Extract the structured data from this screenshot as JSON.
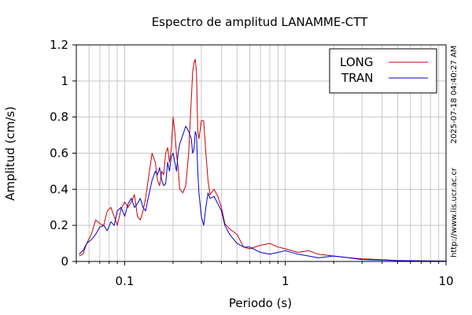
{
  "chart_data": {
    "type": "line",
    "title": "Espectro de amplitud LANAMME-CTT",
    "xlabel": "Periodo (s)",
    "ylabel": "Amplitud (cm/s)",
    "xscale": "log",
    "xlim": [
      0.05,
      10
    ],
    "ylim": [
      0,
      1.2
    ],
    "xticks": [
      {
        "v": 0.1,
        "label": "0.1"
      },
      {
        "v": 1,
        "label": "1"
      },
      {
        "v": 10,
        "label": "10"
      }
    ],
    "yticks": [
      {
        "v": 0,
        "label": "0"
      },
      {
        "v": 0.2,
        "label": "0.2"
      },
      {
        "v": 0.4,
        "label": "0.4"
      },
      {
        "v": 0.6,
        "label": "0.6"
      },
      {
        "v": 0.8,
        "label": "0.8"
      },
      {
        "v": 1.0,
        "label": "1"
      },
      {
        "v": 1.2,
        "label": "1.2"
      }
    ],
    "grid": true,
    "legend_position": "top-right",
    "series": [
      {
        "name": "LONG",
        "color": "#cc0000",
        "x": [
          0.052,
          0.055,
          0.058,
          0.062,
          0.066,
          0.07,
          0.074,
          0.078,
          0.082,
          0.086,
          0.09,
          0.095,
          0.1,
          0.105,
          0.11,
          0.115,
          0.12,
          0.125,
          0.13,
          0.135,
          0.14,
          0.148,
          0.155,
          0.16,
          0.165,
          0.17,
          0.175,
          0.18,
          0.185,
          0.19,
          0.195,
          0.2,
          0.205,
          0.21,
          0.215,
          0.22,
          0.23,
          0.24,
          0.25,
          0.26,
          0.265,
          0.27,
          0.275,
          0.28,
          0.285,
          0.29,
          0.3,
          0.31,
          0.32,
          0.33,
          0.34,
          0.36,
          0.38,
          0.4,
          0.42,
          0.45,
          0.5,
          0.55,
          0.6,
          0.7,
          0.8,
          0.9,
          1.0,
          1.2,
          1.4,
          1.6,
          2.0,
          2.5,
          3.0,
          4.0,
          5.0,
          7.0,
          10.0
        ],
        "y": [
          0.03,
          0.04,
          0.1,
          0.15,
          0.23,
          0.21,
          0.2,
          0.28,
          0.3,
          0.25,
          0.2,
          0.29,
          0.33,
          0.3,
          0.33,
          0.37,
          0.25,
          0.23,
          0.28,
          0.35,
          0.45,
          0.6,
          0.55,
          0.45,
          0.42,
          0.5,
          0.48,
          0.6,
          0.63,
          0.55,
          0.62,
          0.8,
          0.72,
          0.6,
          0.52,
          0.4,
          0.38,
          0.42,
          0.6,
          0.9,
          1.05,
          1.1,
          1.12,
          1.05,
          0.72,
          0.68,
          0.78,
          0.78,
          0.6,
          0.45,
          0.37,
          0.4,
          0.36,
          0.3,
          0.21,
          0.18,
          0.15,
          0.08,
          0.07,
          0.09,
          0.1,
          0.08,
          0.07,
          0.05,
          0.06,
          0.04,
          0.03,
          0.02,
          0.015,
          0.01,
          0.005,
          0.003,
          0.002
        ]
      },
      {
        "name": "TRAN",
        "color": "#0000cc",
        "x": [
          0.052,
          0.055,
          0.058,
          0.062,
          0.066,
          0.07,
          0.074,
          0.078,
          0.082,
          0.086,
          0.09,
          0.095,
          0.1,
          0.105,
          0.11,
          0.115,
          0.12,
          0.125,
          0.13,
          0.135,
          0.14,
          0.148,
          0.155,
          0.16,
          0.165,
          0.17,
          0.175,
          0.18,
          0.185,
          0.19,
          0.195,
          0.2,
          0.205,
          0.21,
          0.215,
          0.22,
          0.23,
          0.24,
          0.25,
          0.26,
          0.265,
          0.27,
          0.275,
          0.28,
          0.285,
          0.29,
          0.3,
          0.31,
          0.32,
          0.33,
          0.34,
          0.36,
          0.38,
          0.4,
          0.42,
          0.45,
          0.5,
          0.55,
          0.6,
          0.7,
          0.8,
          0.9,
          1.0,
          1.2,
          1.4,
          1.6,
          2.0,
          2.5,
          3.0,
          4.0,
          5.0,
          7.0,
          10.0
        ],
        "y": [
          0.04,
          0.06,
          0.1,
          0.12,
          0.15,
          0.19,
          0.2,
          0.17,
          0.22,
          0.2,
          0.28,
          0.3,
          0.25,
          0.32,
          0.35,
          0.3,
          0.32,
          0.35,
          0.3,
          0.28,
          0.35,
          0.45,
          0.5,
          0.48,
          0.52,
          0.45,
          0.42,
          0.43,
          0.55,
          0.5,
          0.58,
          0.6,
          0.55,
          0.5,
          0.6,
          0.65,
          0.7,
          0.75,
          0.72,
          0.68,
          0.6,
          0.62,
          0.72,
          0.7,
          0.5,
          0.38,
          0.25,
          0.2,
          0.3,
          0.38,
          0.35,
          0.36,
          0.32,
          0.28,
          0.2,
          0.15,
          0.1,
          0.08,
          0.08,
          0.05,
          0.04,
          0.05,
          0.06,
          0.04,
          0.03,
          0.02,
          0.03,
          0.02,
          0.01,
          0.008,
          0.005,
          0.003,
          0.002
        ]
      }
    ]
  },
  "side_text_top": "2025-07-18 04:40:27 AM",
  "side_text_bottom": "http://www.lis.ucr.ac.cr"
}
